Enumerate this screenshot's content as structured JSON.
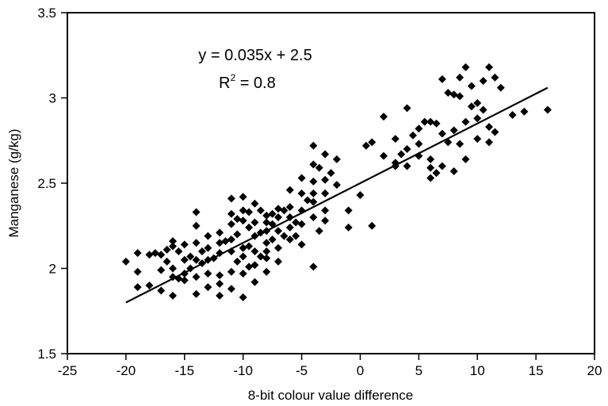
{
  "chart_data": {
    "type": "scatter",
    "title": "",
    "xlabel": "8-bit colour value difference",
    "ylabel": "Manganese (g/kg)",
    "xlim": [
      -25,
      20
    ],
    "ylim": [
      1.5,
      3.5
    ],
    "x_ticks": [
      "-25",
      "-20",
      "-15",
      "-10",
      "-5",
      "0",
      "5",
      "10",
      "15",
      "20"
    ],
    "y_ticks": [
      "1.5",
      "2",
      "2.5",
      "3",
      "3.5"
    ],
    "x_tick_values": [
      -25,
      -20,
      -15,
      -10,
      -5,
      0,
      5,
      10,
      15,
      20
    ],
    "y_tick_values": [
      1.5,
      2,
      2.5,
      3,
      3.5
    ],
    "grid": false,
    "legend": "none",
    "marker": "diamond",
    "marker_color": "#000000",
    "equation": "y = 0.035x + 2.5",
    "r2_label": "R",
    "r2_sup": "2",
    "r2_value": " = 0.8",
    "trendline": {
      "slope": 0.035,
      "intercept": 2.5,
      "x_range": [
        -20,
        16
      ]
    },
    "points": [
      [
        -20,
        2.04
      ],
      [
        -19,
        2.09
      ],
      [
        -19,
        1.98
      ],
      [
        -19,
        1.89
      ],
      [
        -18,
        2.08
      ],
      [
        -18,
        1.9
      ],
      [
        -17.5,
        2.09
      ],
      [
        -17,
        2.08
      ],
      [
        -17,
        1.99
      ],
      [
        -17,
        1.87
      ],
      [
        -16.5,
        2.11
      ],
      [
        -16.5,
        2.04
      ],
      [
        -16,
        2.16
      ],
      [
        -16,
        2.13
      ],
      [
        -16,
        2.0
      ],
      [
        -16,
        1.95
      ],
      [
        -16,
        1.84
      ],
      [
        -15.5,
        2.1
      ],
      [
        -15.5,
        1.94
      ],
      [
        -15,
        2.14
      ],
      [
        -15,
        2.05
      ],
      [
        -15,
        1.97
      ],
      [
        -15,
        1.93
      ],
      [
        -14.5,
        2.07
      ],
      [
        -14.5,
        2.0
      ],
      [
        -14,
        2.33
      ],
      [
        -14,
        2.25
      ],
      [
        -14,
        2.15
      ],
      [
        -14,
        2.05
      ],
      [
        -14,
        1.95
      ],
      [
        -14,
        1.85
      ],
      [
        -13.5,
        2.1
      ],
      [
        -13.5,
        2.03
      ],
      [
        -13,
        2.19
      ],
      [
        -13,
        2.12
      ],
      [
        -13,
        2.05
      ],
      [
        -13,
        1.97
      ],
      [
        -13,
        1.89
      ],
      [
        -12.5,
        2.06
      ],
      [
        -12,
        2.21
      ],
      [
        -12,
        2.15
      ],
      [
        -12,
        2.09
      ],
      [
        -12,
        1.96
      ],
      [
        -12,
        1.91
      ],
      [
        -12,
        1.84
      ],
      [
        -11.5,
        2.16
      ],
      [
        -11,
        2.41
      ],
      [
        -11,
        2.32
      ],
      [
        -11,
        2.26
      ],
      [
        -11,
        2.17
      ],
      [
        -11,
        2.1
      ],
      [
        -11,
        1.98
      ],
      [
        -11,
        1.88
      ],
      [
        -10.5,
        2.29
      ],
      [
        -10.5,
        2.2
      ],
      [
        -10.5,
        2.04
      ],
      [
        -10,
        2.42
      ],
      [
        -10,
        2.34
      ],
      [
        -10,
        2.28
      ],
      [
        -10,
        2.12
      ],
      [
        -10,
        2.07
      ],
      [
        -10,
        1.97
      ],
      [
        -10,
        1.83
      ],
      [
        -9.5,
        2.33
      ],
      [
        -9.5,
        2.24
      ],
      [
        -9.5,
        2.13
      ],
      [
        -9.5,
        2.01
      ],
      [
        -9,
        2.38
      ],
      [
        -9,
        2.27
      ],
      [
        -9,
        2.19
      ],
      [
        -9,
        2.1
      ],
      [
        -9,
        2.02
      ],
      [
        -9,
        1.92
      ],
      [
        -8.5,
        2.34
      ],
      [
        -8.5,
        2.21
      ],
      [
        -8.5,
        2.07
      ],
      [
        -8,
        2.31
      ],
      [
        -8,
        2.27
      ],
      [
        -8,
        2.22
      ],
      [
        -8,
        2.15
      ],
      [
        -8,
        2.1
      ],
      [
        -8,
        2.06
      ],
      [
        -8,
        1.98
      ],
      [
        -7.5,
        2.32
      ],
      [
        -7.5,
        2.26
      ],
      [
        -7.5,
        2.17
      ],
      [
        -7,
        2.35
      ],
      [
        -7,
        2.3
      ],
      [
        -7,
        2.22
      ],
      [
        -7,
        2.12
      ],
      [
        -7,
        2.04
      ],
      [
        -6.5,
        2.34
      ],
      [
        -6.5,
        2.19
      ],
      [
        -6,
        2.46
      ],
      [
        -6,
        2.36
      ],
      [
        -6,
        2.3
      ],
      [
        -6,
        2.24
      ],
      [
        -6,
        2.17
      ],
      [
        -5.5,
        2.27
      ],
      [
        -5.5,
        2.19
      ],
      [
        -5,
        2.53
      ],
      [
        -5,
        2.44
      ],
      [
        -5,
        2.34
      ],
      [
        -5,
        2.26
      ],
      [
        -5,
        2.14
      ],
      [
        -4.5,
        2.4
      ],
      [
        -4,
        2.72
      ],
      [
        -4,
        2.61
      ],
      [
        -4,
        2.51
      ],
      [
        -4,
        2.44
      ],
      [
        -4,
        2.39
      ],
      [
        -4,
        2.3
      ],
      [
        -4,
        2.01
      ],
      [
        -3.5,
        2.59
      ],
      [
        -3.5,
        2.22
      ],
      [
        -3,
        2.67
      ],
      [
        -3,
        2.52
      ],
      [
        -3,
        2.44
      ],
      [
        -3,
        2.34
      ],
      [
        -3,
        2.28
      ],
      [
        -2.5,
        2.56
      ],
      [
        -2,
        2.64
      ],
      [
        -2,
        2.49
      ],
      [
        -1,
        2.34
      ],
      [
        -1,
        2.24
      ],
      [
        0,
        2.43
      ],
      [
        0.5,
        2.72
      ],
      [
        1,
        2.74
      ],
      [
        1,
        2.25
      ],
      [
        2,
        2.89
      ],
      [
        2,
        2.66
      ],
      [
        3,
        2.76
      ],
      [
        3,
        2.62
      ],
      [
        3,
        2.6
      ],
      [
        3.5,
        2.67
      ],
      [
        4,
        2.94
      ],
      [
        4,
        2.7
      ],
      [
        4,
        2.6
      ],
      [
        4.5,
        2.78
      ],
      [
        5,
        2.82
      ],
      [
        5,
        2.73
      ],
      [
        5,
        2.66
      ],
      [
        5.5,
        2.86
      ],
      [
        6,
        2.86
      ],
      [
        6,
        2.64
      ],
      [
        6,
        2.59
      ],
      [
        6,
        2.53
      ],
      [
        6.5,
        2.85
      ],
      [
        6.5,
        2.56
      ],
      [
        7,
        3.11
      ],
      [
        7,
        2.79
      ],
      [
        7,
        2.6
      ],
      [
        7.5,
        3.03
      ],
      [
        7.5,
        2.74
      ],
      [
        8,
        3.02
      ],
      [
        8,
        2.81
      ],
      [
        8,
        2.57
      ],
      [
        8.5,
        3.01
      ],
      [
        8.5,
        3.12
      ],
      [
        8.5,
        2.73
      ],
      [
        9,
        3.18
      ],
      [
        9,
        2.86
      ],
      [
        9,
        2.64
      ],
      [
        9.5,
        3.07
      ],
      [
        9.5,
        2.95
      ],
      [
        10,
        2.88
      ],
      [
        10,
        2.97
      ],
      [
        10,
        2.76
      ],
      [
        10.5,
        3.1
      ],
      [
        10.5,
        2.93
      ],
      [
        11,
        3.18
      ],
      [
        11,
        2.83
      ],
      [
        11,
        2.74
      ],
      [
        11.5,
        3.12
      ],
      [
        11.5,
        2.8
      ],
      [
        12,
        3.06
      ],
      [
        13,
        2.9
      ],
      [
        14,
        2.92
      ],
      [
        16,
        2.93
      ]
    ]
  }
}
